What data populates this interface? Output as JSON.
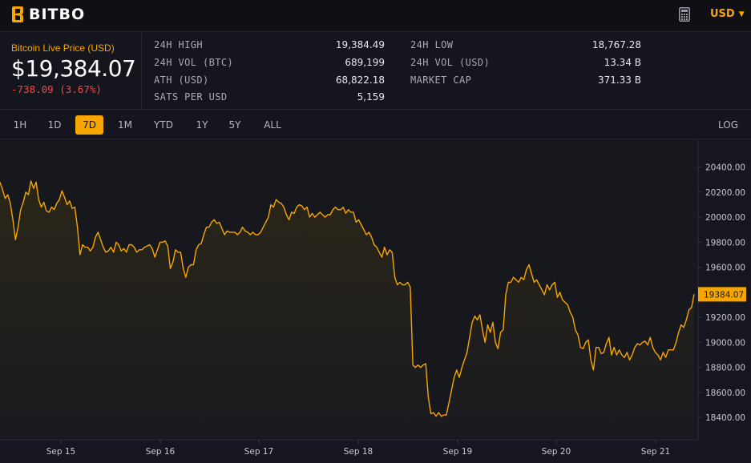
{
  "header": {
    "logo_text": "BITBO",
    "calculator_icon": "calculator-icon",
    "currency": "USD"
  },
  "price": {
    "title": "Bitcoin Live Price (USD)",
    "value": "$19,384.07",
    "change": "-738.09 (3.67%)",
    "change_color": "#f04848"
  },
  "stats": {
    "high_24h": {
      "label": "24H HIGH",
      "value": "19,384.49"
    },
    "vol_btc": {
      "label": "24H VOL (BTC)",
      "value": "689,199"
    },
    "ath": {
      "label": "ATH (USD)",
      "value": "68,822.18"
    },
    "sats": {
      "label": "SATS PER USD",
      "value": "5,159"
    },
    "low_24h": {
      "label": "24H LOW",
      "value": "18,767.28"
    },
    "vol_usd": {
      "label": "24H VOL (USD)",
      "value": "13.34 B"
    },
    "market_cap": {
      "label": "MARKET CAP",
      "value": "371.33 B"
    }
  },
  "ranges": {
    "items": [
      "1H",
      "1D",
      "7D",
      "1M",
      "YTD",
      "1Y",
      "5Y",
      "ALL"
    ],
    "active": "7D",
    "log_label": "LOG"
  },
  "colors": {
    "accent": "#f7a600",
    "background": "#161620",
    "negative": "#f04848"
  },
  "chart_data": {
    "type": "line",
    "current_price_label": "19384.07",
    "x_labels": [
      "Sep 15",
      "Sep 16",
      "Sep 17",
      "Sep 18",
      "Sep 19",
      "Sep 20",
      "Sep 21"
    ],
    "y_ticks": [
      "20400.00",
      "20200.00",
      "20000.00",
      "19800.00",
      "19600.00",
      "19400.00",
      "19200.00",
      "19000.00",
      "18800.00",
      "18600.00",
      "18400.00"
    ],
    "ylim": [
      18235,
      20615
    ],
    "y_tick_values": [
      20400,
      20200,
      20000,
      19800,
      19600,
      19400,
      19200,
      19000,
      18800,
      18600,
      18400
    ],
    "series": [
      {
        "values": [
          20280,
          20220,
          20150,
          20180,
          20110,
          19980,
          19820,
          19920,
          20060,
          20120,
          20200,
          20180,
          20290,
          20230,
          20280,
          20140,
          20080,
          20120,
          20050,
          20040,
          20080,
          20060,
          20110,
          20140,
          20210,
          20160,
          20100,
          20130,
          20070,
          20080,
          19920,
          19700,
          19780,
          19760,
          19760,
          19730,
          19760,
          19840,
          19880,
          19820,
          19760,
          19720,
          19730,
          19760,
          19720,
          19800,
          19780,
          19730,
          19750,
          19720,
          19780,
          19780,
          19760,
          19720,
          19740,
          19740,
          19760,
          19770,
          19780,
          19750,
          19680,
          19740,
          19800,
          19800,
          19810,
          19770,
          19590,
          19640,
          19740,
          19720,
          19720,
          19590,
          19520,
          19600,
          19620,
          19620,
          19740,
          19780,
          19790,
          19860,
          19920,
          19920,
          19960,
          19980,
          19950,
          19960,
          19910,
          19860,
          19890,
          19880,
          19880,
          19880,
          19860,
          19880,
          19920,
          19890,
          19880,
          19860,
          19880,
          19860,
          19860,
          19880,
          19920,
          19960,
          20000,
          20100,
          20080,
          20140,
          20120,
          20110,
          20080,
          20020,
          19980,
          20040,
          20030,
          20080,
          20100,
          20090,
          20060,
          20080,
          20000,
          20030,
          20000,
          20020,
          20040,
          20020,
          20000,
          20020,
          20020,
          20060,
          20080,
          20060,
          20060,
          20080,
          20030,
          20060,
          20040,
          20040,
          19960,
          19980,
          19940,
          19900,
          19860,
          19880,
          19840,
          19780,
          19760,
          19720,
          19680,
          19760,
          19700,
          19740,
          19720,
          19520,
          19460,
          19480,
          19460,
          19460,
          19480,
          19440,
          18820,
          18800,
          18820,
          18800,
          18820,
          18830,
          18560,
          18430,
          18440,
          18410,
          18440,
          18410,
          18420,
          18420,
          18520,
          18620,
          18720,
          18780,
          18720,
          18800,
          18860,
          18920,
          19040,
          19160,
          19210,
          19180,
          19220,
          19100,
          19000,
          19140,
          19080,
          19160,
          19000,
          18950,
          19080,
          19100,
          19380,
          19480,
          19480,
          19520,
          19500,
          19480,
          19520,
          19500,
          19580,
          19620,
          19550,
          19480,
          19500,
          19460,
          19420,
          19380,
          19460,
          19420,
          19460,
          19480,
          19360,
          19400,
          19340,
          19320,
          19300,
          19240,
          19200,
          19100,
          19060,
          18960,
          18950,
          19000,
          19020,
          18860,
          18780,
          18960,
          18960,
          18910,
          18920,
          18990,
          19040,
          18900,
          18960,
          18900,
          18940,
          18900,
          18880,
          18920,
          18860,
          18900,
          18960,
          18990,
          18980,
          19000,
          19010,
          18980,
          19040,
          18960,
          18920,
          18900,
          18860,
          18920,
          18880,
          18940,
          18940,
          18940,
          19000,
          19080,
          19140,
          19120,
          19180,
          19260,
          19280,
          19384
        ]
      }
    ]
  }
}
